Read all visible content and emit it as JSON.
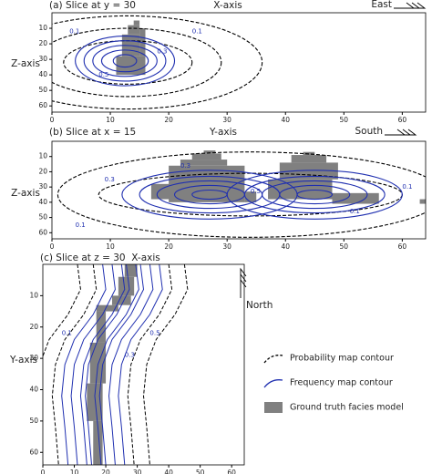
{
  "chart_data": [
    {
      "type": "contour",
      "title": "(a) Slice at y = 30",
      "x_label": "X-axis",
      "y_label": "Z-axis",
      "direction": "East",
      "xlim": [
        0,
        64
      ],
      "ylim": [
        0,
        64
      ],
      "y_inverted": true,
      "xticks": [
        0,
        10,
        20,
        30,
        40,
        50,
        60
      ],
      "yticks": [
        10,
        20,
        30,
        40,
        50,
        60
      ],
      "levels": [
        0.1,
        0.3,
        0.5
      ]
    },
    {
      "type": "contour",
      "title": "(b) Slice at x = 15",
      "x_label": "Y-axis",
      "y_label": "Z-axis",
      "direction": "South",
      "xlim": [
        0,
        64
      ],
      "ylim": [
        0,
        64
      ],
      "y_inverted": true,
      "xticks": [
        0,
        10,
        20,
        30,
        40,
        50,
        60
      ],
      "yticks": [
        10,
        20,
        30,
        40,
        50,
        60
      ],
      "levels": [
        0.1,
        0.3,
        0.5
      ]
    },
    {
      "type": "contour",
      "title": "(c) Slice at z = 30",
      "x_label": "X-axis",
      "y_label": "Y-axis",
      "direction": "North",
      "xlim": [
        0,
        64
      ],
      "ylim": [
        0,
        64
      ],
      "y_inverted": true,
      "xticks": [
        0,
        10,
        20,
        30,
        40,
        50,
        60
      ],
      "yticks": [
        10,
        20,
        30,
        40,
        50,
        60
      ],
      "levels": [
        0.1,
        0.3,
        0.5
      ]
    }
  ],
  "legend": [
    "Probability map contour",
    "Frequency map contour",
    "Ground truth facies model"
  ]
}
